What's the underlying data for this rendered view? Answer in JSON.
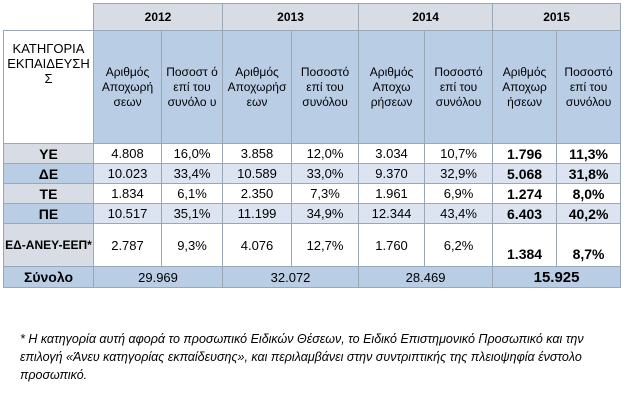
{
  "table": {
    "category_header": "ΚΑΤΗΓΟΡΙΑ ΕΚΠΑΙΔΕΥΣΗ Σ",
    "years": [
      "2012",
      "2013",
      "2014",
      "2015"
    ],
    "subheaders": [
      {
        "count": "Αριθμός Αποχωρή σεων",
        "percent": "Ποσοστ ό επί του συνόλο υ"
      },
      {
        "count": "Αριθμός Αποχωρήσ εων",
        "percent": "Ποσοστό επί του συνόλου"
      },
      {
        "count": "Αριθμός Αποχω ρήσεων",
        "percent": "Ποσοστό επί του συνόλου"
      },
      {
        "count": "Αριθμός Αποχωρ ήσεων",
        "percent": "Ποσοστό επί του συνόλου"
      }
    ],
    "rows": [
      {
        "category": "ΥΕ",
        "values": [
          "4.808",
          "16,0%",
          "3.858",
          "12,0%",
          "3.034",
          "10,7%",
          "1.796",
          "11,3%"
        ]
      },
      {
        "category": "ΔΕ",
        "values": [
          "10.023",
          "33,4%",
          "10.589",
          "33,0%",
          "9.370",
          "32,9%",
          "5.068",
          "31,8%"
        ]
      },
      {
        "category": "ΤΕ",
        "values": [
          "1.834",
          "6,1%",
          "2.350",
          "7,3%",
          "1.961",
          "6,9%",
          "1.274",
          "8,0%"
        ]
      },
      {
        "category": "ΠΕ",
        "values": [
          "10.517",
          "35,1%",
          "11.199",
          "34,9%",
          "12.344",
          "43,4%",
          "6.403",
          "40,2%"
        ]
      },
      {
        "category": "ΕΔ-ΑΝΕΥ-ΕΕΠ*",
        "values": [
          "2.787",
          "9,3%",
          "4.076",
          "12,7%",
          "1.760",
          "6,2%",
          "1.384",
          "8,7%"
        ]
      }
    ],
    "total": {
      "label": "Σύνολο",
      "values": [
        "29.969",
        "32.072",
        "28.469",
        "15.925"
      ]
    }
  },
  "footnote": "* Η κατηγορία αυτή αφορά το προσωπικό Ειδικών Θέσεων, το Ειδικό Επιστημονικό Προσωπικό και την επιλογή «Άνευ κατηγορίας εκπαίδευσης», και περιλαμβάνει στην συντριπτικής της πλειοψηφία ένστολο προσωπικό."
}
